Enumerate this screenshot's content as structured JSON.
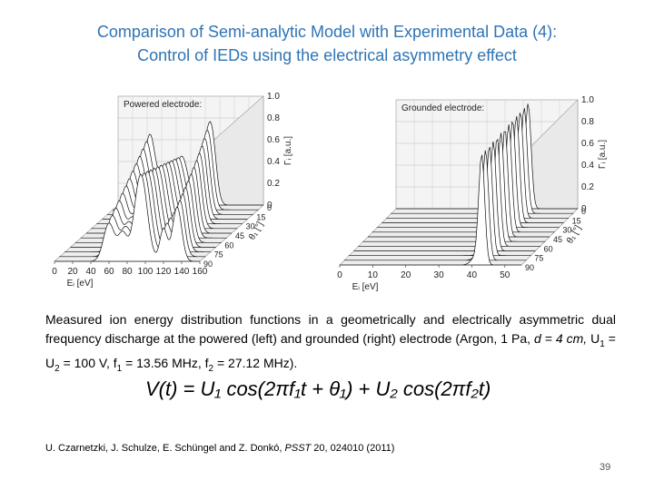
{
  "slide": {
    "title_line1": "Comparison of Semi-analytic Model with Experimental Data (4):",
    "title_line2": "Control of IEDs using the electrical asymmetry effect",
    "page_number": "39"
  },
  "caption": {
    "part1": "Measured ion energy distribution functions in a geometrically and electrically asymmetric dual frequency discharge at the powered (left) and grounded (right) electrode (Argon, 1 Pa, ",
    "d_expr": "d = 4 cm,",
    "u_sym1": "U",
    "u_sub1": "1",
    "eq1": " = U",
    "u_sub2": "2",
    "eq2": " = 100 V, f",
    "f_sub1": "1",
    "eq3": " = 13.56 MHz, f",
    "f_sub2": "2",
    "eq4": " = 27.12 MHz)."
  },
  "formula": {
    "text": "V(t) = U₁ cos(2πf₁t + θ₁) + U₂ cos(2πf₂t)"
  },
  "reference": {
    "authors": "U. Czarnetzki, J. Schulze, E. Schüngel and Z. Donkó, ",
    "journal": "PSST",
    "rest": " 20, 024010 (2011)"
  },
  "chart_data": [
    {
      "type": "area",
      "title": "Powered electrode:",
      "xlabel": "Eᵢ [eV]",
      "ylabel": "Γᵢ [a.u.]",
      "zlabel": "θ₁ [°]",
      "x_ticks": [
        "0",
        "20",
        "40",
        "60",
        "80",
        "100",
        "120",
        "140",
        "160"
      ],
      "y_ticks": [
        "0",
        "0.2",
        "0.4",
        "0.6",
        "0.8",
        "1.0"
      ],
      "z_ticks": [
        "0",
        "15",
        "30",
        "45",
        "60",
        "75",
        "90"
      ],
      "series_count": 13,
      "peaks_eV_front_series": [
        60,
        95,
        135
      ]
    },
    {
      "type": "area",
      "title": "Grounded electrode:",
      "xlabel": "Eᵢ [eV]",
      "ylabel": "Γᵢ [a.u.]",
      "zlabel": "θ₁ [°]",
      "x_ticks": [
        "0",
        "10",
        "20",
        "30",
        "40",
        "50"
      ],
      "y_ticks": [
        "0",
        "0.2",
        "0.4",
        "0.6",
        "0.8",
        "1.0"
      ],
      "z_ticks": [
        "0",
        "15",
        "30",
        "45",
        "60",
        "75",
        "90"
      ],
      "series_count": 13,
      "peak_eV": 43
    }
  ]
}
